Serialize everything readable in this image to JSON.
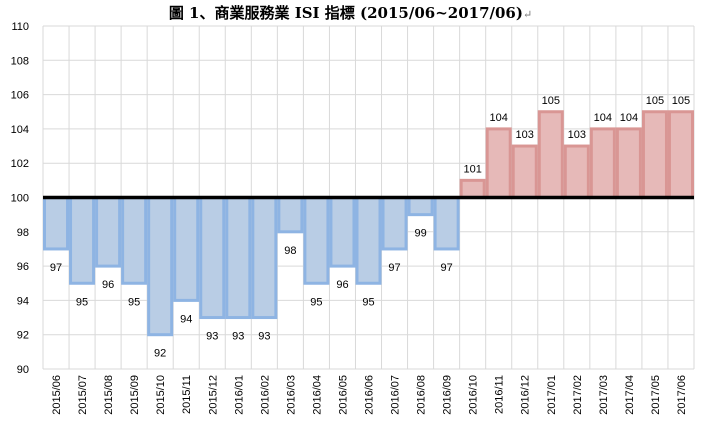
{
  "chart_data": {
    "type": "bar",
    "title": "圖 1、商業服務業 ISI 指標 (2015/06~2017/06)",
    "title_mark": "↵",
    "xlabel": "",
    "ylabel": "",
    "ylim": [
      90,
      110
    ],
    "yticks": [
      90,
      92,
      94,
      96,
      98,
      100,
      102,
      104,
      106,
      108,
      110
    ],
    "baseline": 100,
    "grid": true,
    "categories": [
      "2015/06",
      "2015/07",
      "2015/08",
      "2015/09",
      "2015/10",
      "2015/11",
      "2015/12",
      "2016/01",
      "2016/02",
      "2016/03",
      "2016/04",
      "2016/05",
      "2016/06",
      "2016/07",
      "2016/08",
      "2016/09",
      "2016/10",
      "2016/11",
      "2016/12",
      "2017/01",
      "2017/02",
      "2017/03",
      "2017/04",
      "2017/05",
      "2017/06"
    ],
    "values": [
      97,
      95,
      96,
      95,
      92,
      94,
      93,
      93,
      93,
      98,
      95,
      96,
      95,
      97,
      99,
      97,
      101,
      104,
      103,
      105,
      103,
      104,
      104,
      105,
      105
    ],
    "colors": {
      "below_fill": "#b9cde5",
      "below_stroke": "#8eb4e3",
      "above_fill": "#e6b9b8",
      "above_stroke": "#d99694",
      "baseline": "#000000",
      "grid": "#d9d9d9"
    }
  }
}
